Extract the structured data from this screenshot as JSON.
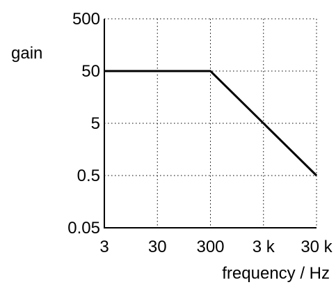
{
  "chart_data": {
    "type": "line",
    "title": "",
    "xlabel": "frequency / Hz",
    "ylabel": "gain",
    "x_scale": "log",
    "y_scale": "log",
    "xlim": [
      3,
      30000
    ],
    "ylim": [
      0.05,
      500
    ],
    "x_ticks": [
      3,
      30,
      300,
      3000,
      30000
    ],
    "x_tick_labels": [
      "3",
      "30",
      "300",
      "3 k",
      "30 k"
    ],
    "y_ticks": [
      0.05,
      0.5,
      5,
      50,
      500
    ],
    "y_tick_labels": [
      "0.05",
      "0.5",
      "5",
      "50",
      "500"
    ],
    "grid": true,
    "grid_style": "dotted",
    "series": [
      {
        "x": [
          3,
          300,
          30000
        ],
        "y": [
          50,
          50,
          0.5
        ]
      }
    ],
    "colors": {
      "line": "#000000",
      "axis": "#000000",
      "grid": "#000000"
    }
  }
}
